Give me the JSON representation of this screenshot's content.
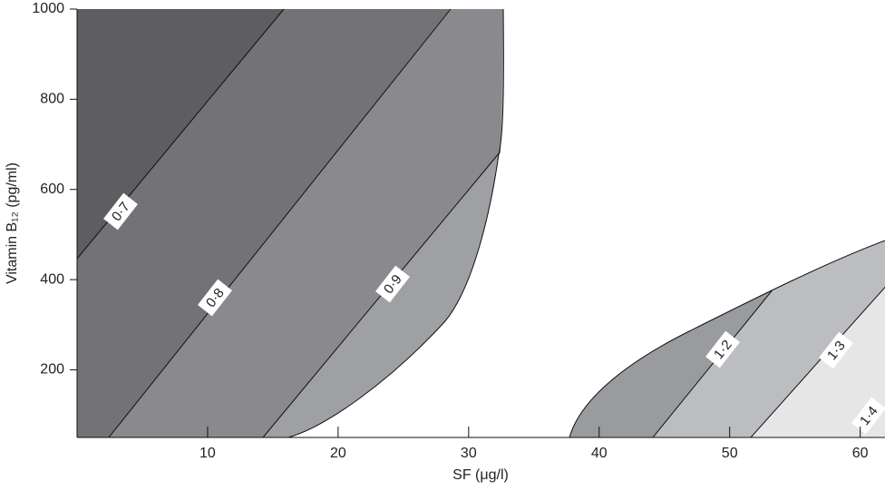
{
  "chart_data": {
    "type": "contour",
    "xlabel": "SF (μg/l)",
    "ylabel": "Vitamin B₁₂ (pg/ml)",
    "xlim": [
      0,
      61.9
    ],
    "ylim": [
      50,
      1000
    ],
    "xticks": [
      10,
      20,
      30,
      40,
      50,
      60
    ],
    "yticks": [
      200,
      400,
      600,
      800,
      1000
    ],
    "contour_labels": [
      {
        "value": 0.7,
        "label": "0·7"
      },
      {
        "value": 0.8,
        "label": "0·8"
      },
      {
        "value": 0.9,
        "label": "0·9"
      },
      {
        "value": 1.2,
        "label": "1·2"
      },
      {
        "value": 1.3,
        "label": "1·3"
      },
      {
        "value": 1.4,
        "label": "1·4"
      }
    ]
  }
}
